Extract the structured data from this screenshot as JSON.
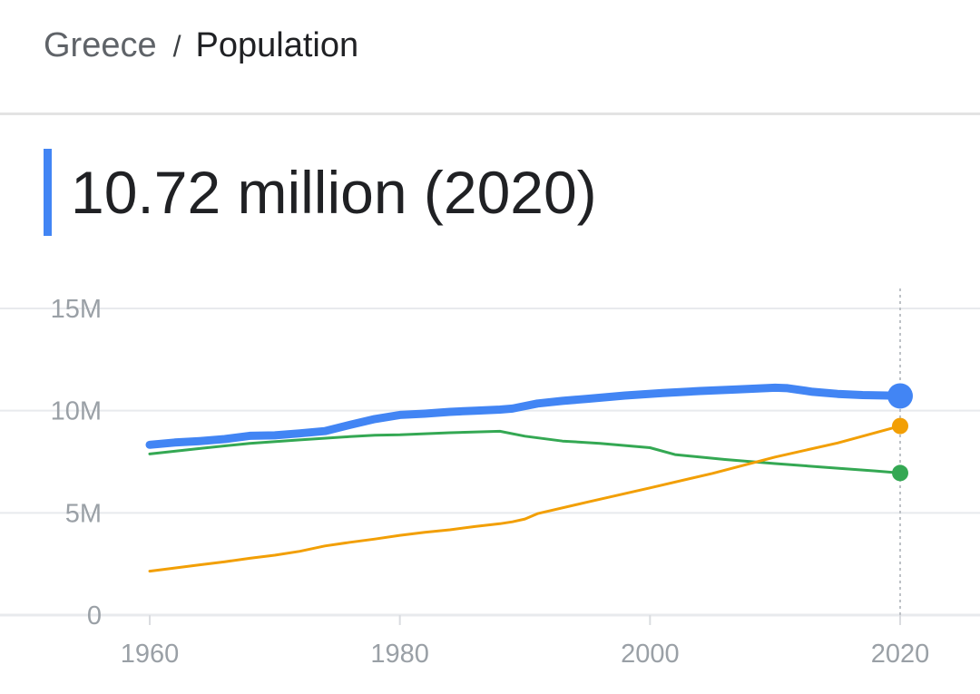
{
  "breadcrumb": {
    "parent": "Greece",
    "separator": "/",
    "current": "Population"
  },
  "headline": "10.72 million (2020)",
  "colors": {
    "accent": "#4285f4",
    "series": [
      "#4285f4",
      "#34a853",
      "#f29f05"
    ],
    "grid": "#e8eaed",
    "axis_text": "#9aa0a6"
  },
  "chart_data": {
    "type": "line",
    "title": "",
    "xlabel": "",
    "ylabel": "",
    "xlim": [
      1960,
      2020
    ],
    "ylim": [
      0,
      15000000
    ],
    "grid": true,
    "legend": "none",
    "x_ticks": [
      1960,
      1980,
      2000,
      2020
    ],
    "x_tick_labels": [
      "1960",
      "1980",
      "2000",
      "2020"
    ],
    "y_ticks": [
      0,
      5000000,
      10000000,
      15000000
    ],
    "y_tick_labels": [
      "0",
      "5M",
      "10M",
      "15M"
    ],
    "highlight_x": 2020,
    "series": [
      {
        "color": "#4285f4",
        "emphasis": true,
        "x": [
          1960,
          1962,
          1964,
          1966,
          1968,
          1970,
          1972,
          1974,
          1976,
          1978,
          1980,
          1982,
          1984,
          1986,
          1988,
          1989,
          1991,
          1993,
          1995,
          1998,
          2001,
          2004,
          2007,
          2010,
          2011,
          2013,
          2015,
          2017,
          2019,
          2020
        ],
        "y": [
          8330000,
          8440000,
          8510000,
          8610000,
          8770000,
          8790000,
          8890000,
          9000000,
          9300000,
          9590000,
          9790000,
          9850000,
          9940000,
          10000000,
          10050000,
          10100000,
          10350000,
          10480000,
          10580000,
          10740000,
          10860000,
          10960000,
          11040000,
          11120000,
          11100000,
          10920000,
          10820000,
          10760000,
          10740000,
          10720000
        ]
      },
      {
        "color": "#34a853",
        "emphasis": false,
        "x": [
          1960,
          1964,
          1968,
          1972,
          1976,
          1978,
          1980,
          1984,
          1988,
          1990,
          1993,
          1996,
          2000,
          2002,
          2006,
          2010,
          2014,
          2018,
          2020
        ],
        "y": [
          7880000,
          8150000,
          8400000,
          8570000,
          8730000,
          8800000,
          8820000,
          8920000,
          8990000,
          8750000,
          8510000,
          8400000,
          8190000,
          7850000,
          7610000,
          7410000,
          7230000,
          7050000,
          6950000
        ]
      },
      {
        "color": "#f29f05",
        "emphasis": false,
        "x": [
          1960,
          1964,
          1966,
          1968,
          1970,
          1972,
          1974,
          1976,
          1978,
          1980,
          1982,
          1984,
          1986,
          1988,
          1989,
          1990,
          1991,
          1995,
          2000,
          2005,
          2010,
          2015,
          2020
        ],
        "y": [
          2150000,
          2460000,
          2610000,
          2780000,
          2930000,
          3120000,
          3380000,
          3560000,
          3720000,
          3900000,
          4050000,
          4170000,
          4330000,
          4470000,
          4560000,
          4700000,
          4960000,
          5530000,
          6220000,
          6930000,
          7730000,
          8420000,
          9250000
        ]
      }
    ]
  }
}
